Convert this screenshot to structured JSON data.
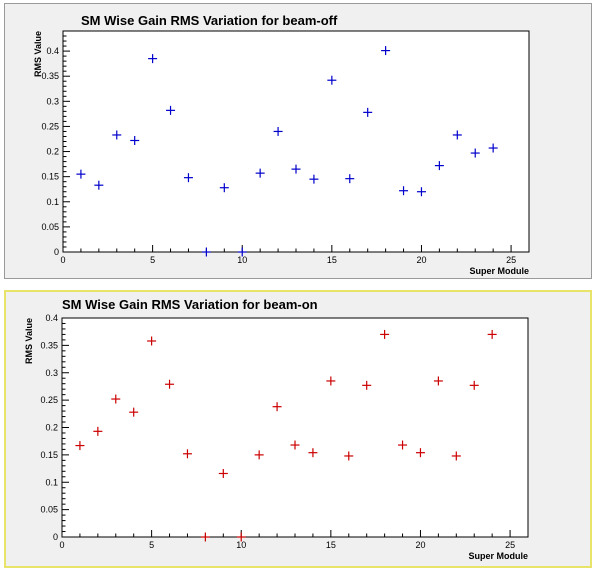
{
  "chart_data": [
    {
      "type": "scatter",
      "title": "SM Wise Gain RMS Variation for beam-off",
      "xlabel": "Super Module",
      "ylabel": "RMS Value",
      "xlim": [
        0,
        26
      ],
      "ylim": [
        0,
        0.44
      ],
      "xticks": [
        "0",
        "5",
        "10",
        "15",
        "20",
        "25"
      ],
      "yticks": [
        "0",
        "0.05",
        "0.1",
        "0.15",
        "0.2",
        "0.25",
        "0.3",
        "0.35",
        "0.4"
      ],
      "marker_color": "#0000cc",
      "x": [
        1,
        2,
        3,
        4,
        5,
        6,
        7,
        8,
        9,
        10,
        11,
        12,
        13,
        14,
        15,
        16,
        17,
        18,
        19,
        20,
        21,
        22,
        23,
        24
      ],
      "y": [
        0.155,
        0.133,
        0.233,
        0.222,
        0.385,
        0.282,
        0.148,
        0.0,
        0.128,
        0.0,
        0.157,
        0.24,
        0.165,
        0.145,
        0.342,
        0.146,
        0.278,
        0.401,
        0.122,
        0.12,
        0.172,
        0.233,
        0.197,
        0.207
      ]
    },
    {
      "type": "scatter",
      "title": "SM Wise Gain RMS Variation for beam-on",
      "xlabel": "Super Module",
      "ylabel": "RMS Value",
      "xlim": [
        0,
        26
      ],
      "ylim": [
        0,
        0.4
      ],
      "xticks": [
        "0",
        "5",
        "10",
        "15",
        "20",
        "25"
      ],
      "yticks": [
        "0",
        "0.05",
        "0.1",
        "0.15",
        "0.2",
        "0.25",
        "0.3",
        "0.35",
        "0.4"
      ],
      "marker_color": "#cc0000",
      "x": [
        1,
        2,
        3,
        4,
        5,
        6,
        7,
        8,
        9,
        10,
        11,
        12,
        13,
        14,
        15,
        16,
        17,
        18,
        19,
        20,
        21,
        22,
        23,
        24
      ],
      "y": [
        0.167,
        0.193,
        0.252,
        0.228,
        0.358,
        0.279,
        0.152,
        0.0,
        0.116,
        0.0,
        0.15,
        0.238,
        0.168,
        0.154,
        0.285,
        0.148,
        0.277,
        0.37,
        0.168,
        0.154,
        0.285,
        0.148,
        0.277,
        0.37
      ]
    }
  ]
}
